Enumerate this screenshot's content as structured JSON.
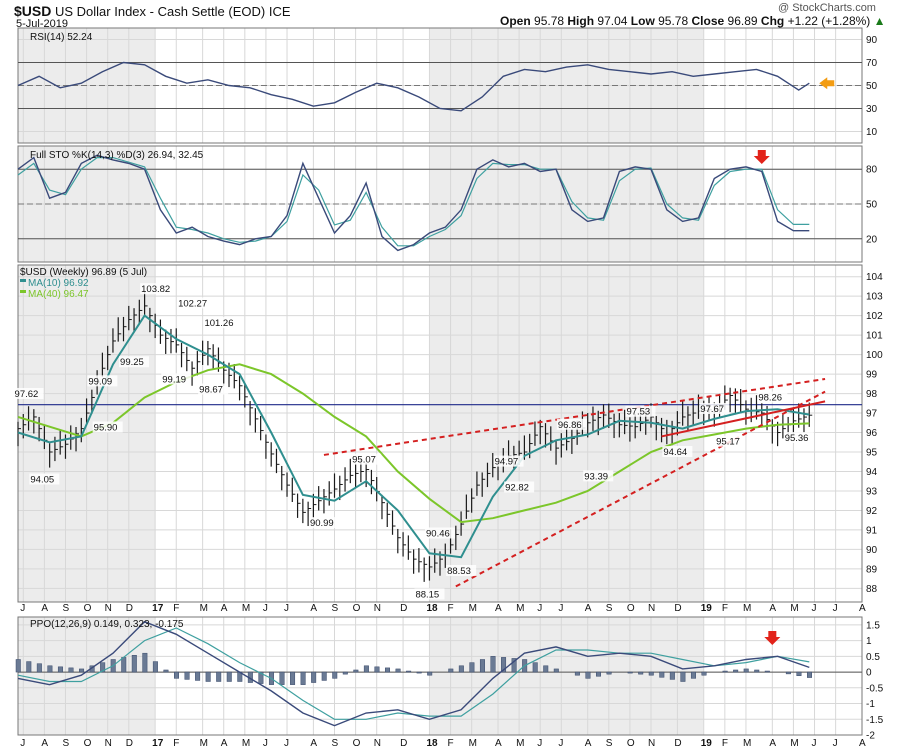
{
  "header": {
    "symbol": "$USD",
    "name": "US Dollar Index - Cash Settle (EOD)",
    "exchange": "ICE",
    "date": "5-Jul-2019",
    "watermark": "@ StockCharts.com",
    "quote": {
      "open_label": "Open",
      "open": "95.78",
      "high_label": "High",
      "high": "97.04",
      "low_label": "Low",
      "low": "95.78",
      "close_label": "Close",
      "close": "96.89",
      "chg_label": "Chg",
      "chg": "+1.22 (+1.28%)"
    }
  },
  "colors": {
    "price_bar": "#1a1a1a",
    "ma10": "#2f8f8f",
    "ma40": "#7cc62a",
    "indicator_line": "#3a4a7a",
    "signal_line": "#3fa0a0",
    "trendline": "#d42020",
    "horizontal_line": "#1f2a8a",
    "arrow_red": "#e2231a",
    "arrow_orange": "#f39c12",
    "panel_bg": "#ffffff",
    "shade_bg": "#ececec"
  },
  "chart_data": [
    {
      "type": "line",
      "panel": "rsi",
      "title": "RSI(14) 52.24",
      "yticks": [
        10,
        30,
        50,
        70,
        90
      ],
      "ylim": [
        0,
        100
      ],
      "x": [
        0,
        4,
        8,
        12,
        16,
        20,
        24,
        28,
        32,
        36,
        40,
        44,
        48,
        52,
        56,
        60,
        64,
        68,
        72,
        76,
        80,
        84,
        88,
        92,
        96,
        100,
        104,
        108,
        112,
        116,
        120,
        124,
        128,
        132,
        136,
        140,
        144,
        148,
        150
      ],
      "values": [
        50,
        58,
        48,
        52,
        62,
        70,
        68,
        58,
        52,
        55,
        50,
        48,
        42,
        38,
        32,
        35,
        44,
        52,
        48,
        40,
        30,
        28,
        40,
        58,
        64,
        62,
        66,
        68,
        64,
        62,
        60,
        62,
        58,
        60,
        62,
        64,
        58,
        46,
        52
      ],
      "signal": "orange left-pointing arrow at last value"
    },
    {
      "type": "line",
      "panel": "full_sto",
      "title": "Full STO %K(14,3) %D(3) 26.94, 32.45",
      "yticks": [
        20,
        50,
        80
      ],
      "ylim": [
        0,
        100
      ],
      "series": [
        {
          "name": "%K",
          "x": [
            0,
            3,
            6,
            9,
            12,
            15,
            18,
            21,
            24,
            27,
            30,
            33,
            36,
            39,
            42,
            45,
            48,
            51,
            54,
            57,
            60,
            63,
            66,
            69,
            72,
            75,
            78,
            81,
            84,
            87,
            90,
            93,
            96,
            99,
            102,
            105,
            108,
            111,
            114,
            117,
            120,
            123,
            126,
            129,
            132,
            135,
            138,
            141,
            144,
            147,
            150
          ],
          "values": [
            80,
            90,
            55,
            60,
            85,
            92,
            88,
            85,
            80,
            45,
            25,
            30,
            22,
            18,
            15,
            20,
            22,
            40,
            85,
            55,
            25,
            40,
            68,
            22,
            10,
            15,
            25,
            30,
            45,
            80,
            88,
            82,
            85,
            78,
            80,
            45,
            35,
            38,
            78,
            82,
            80,
            45,
            35,
            38,
            72,
            80,
            82,
            78,
            35,
            26.94,
            26.94
          ]
        },
        {
          "name": "%D",
          "x": [
            0,
            3,
            6,
            9,
            12,
            15,
            18,
            21,
            24,
            27,
            30,
            33,
            36,
            39,
            42,
            45,
            48,
            51,
            54,
            57,
            60,
            63,
            66,
            69,
            72,
            75,
            78,
            81,
            84,
            87,
            90,
            93,
            96,
            99,
            102,
            105,
            108,
            111,
            114,
            117,
            120,
            123,
            126,
            129,
            132,
            135,
            138,
            141,
            144,
            147,
            150
          ],
          "values": [
            75,
            85,
            62,
            58,
            80,
            90,
            90,
            86,
            82,
            55,
            30,
            28,
            25,
            20,
            17,
            18,
            22,
            35,
            75,
            62,
            32,
            36,
            60,
            30,
            14,
            14,
            22,
            28,
            40,
            72,
            85,
            84,
            84,
            80,
            80,
            52,
            38,
            36,
            70,
            80,
            81,
            50,
            38,
            36,
            66,
            78,
            80,
            80,
            45,
            32.45,
            32.45
          ]
        }
      ],
      "signal": "red down arrow above %K peak near June 2019"
    },
    {
      "type": "bar",
      "panel": "price",
      "title": "$USD (Weekly) 96.89 (5 Jul)",
      "legend": [
        "MA(10) 96.92",
        "MA(40) 96.47"
      ],
      "yticks": [
        88,
        89,
        90,
        91,
        92,
        93,
        94,
        95,
        96,
        97,
        98,
        99,
        100,
        101,
        102,
        103,
        104
      ],
      "ylim": [
        87.3,
        104.6
      ],
      "close_series": {
        "x": [
          0,
          3,
          6,
          9,
          12,
          15,
          18,
          21,
          24,
          27,
          30,
          33,
          36,
          39,
          42,
          45,
          48,
          51,
          54,
          57,
          60,
          63,
          66,
          69,
          72,
          75,
          78,
          81,
          84,
          87,
          90,
          93,
          96,
          99,
          102,
          105,
          108,
          111,
          114,
          117,
          120,
          123,
          126,
          129,
          132,
          135,
          138,
          141,
          144,
          147,
          150
        ],
        "values": [
          96.2,
          96.8,
          95.0,
          95.4,
          96.2,
          98.6,
          100.7,
          101.8,
          102.5,
          101.0,
          100.5,
          99.3,
          100.3,
          99.2,
          98.4,
          96.7,
          94.9,
          93.3,
          91.9,
          92.5,
          93.1,
          93.8,
          94.1,
          92.4,
          90.6,
          89.5,
          89.1,
          89.7,
          91.3,
          93.3,
          94.2,
          94.8,
          95.0,
          96.3,
          95.2,
          95.7,
          96.5,
          96.9,
          96.4,
          96.3,
          96.8,
          95.9,
          96.8,
          97.1,
          97.2,
          97.9,
          97.2,
          97.0,
          96.0,
          96.6,
          96.89
        ]
      },
      "ma10": {
        "x": [
          0,
          6,
          12,
          18,
          24,
          30,
          36,
          42,
          48,
          54,
          60,
          66,
          72,
          78,
          84,
          90,
          96,
          102,
          108,
          114,
          120,
          126,
          132,
          138,
          144,
          150
        ],
        "values": [
          96.0,
          95.5,
          95.8,
          99.5,
          102.0,
          100.8,
          100.0,
          99.0,
          96.0,
          92.8,
          92.5,
          93.5,
          92.0,
          89.8,
          89.6,
          92.7,
          94.8,
          95.6,
          95.9,
          96.6,
          96.5,
          96.2,
          96.7,
          97.1,
          97.2,
          96.92
        ]
      },
      "ma40": {
        "x": [
          0,
          6,
          12,
          18,
          24,
          30,
          36,
          42,
          48,
          54,
          60,
          66,
          72,
          78,
          84,
          90,
          96,
          102,
          108,
          114,
          120,
          126,
          132,
          138,
          144,
          150
        ],
        "values": [
          96.8,
          96.3,
          95.8,
          96.5,
          97.8,
          98.6,
          99.2,
          99.5,
          99.0,
          98.0,
          96.8,
          95.8,
          94.0,
          92.6,
          91.4,
          91.6,
          92.0,
          92.4,
          93.0,
          94.0,
          95.0,
          95.6,
          95.9,
          96.2,
          96.4,
          96.47
        ]
      },
      "price_labels": [
        {
          "text": "97.62",
          "x": 2,
          "y": 97.62
        },
        {
          "text": "94.05",
          "x": 5,
          "y": 94.05
        },
        {
          "text": "95.90",
          "x": 17,
          "y": 95.9
        },
        {
          "text": "99.09",
          "x": 16,
          "y": 99.09
        },
        {
          "text": "99.25",
          "x": 22,
          "y": 99.25
        },
        {
          "text": "103.82",
          "x": 26,
          "y": 103.82
        },
        {
          "text": "102.27",
          "x": 33,
          "y": 102.27
        },
        {
          "text": "99.19",
          "x": 30,
          "y": 99.19
        },
        {
          "text": "101.26",
          "x": 38,
          "y": 101.26
        },
        {
          "text": "98.67",
          "x": 37,
          "y": 98.67
        },
        {
          "text": "90.99",
          "x": 58,
          "y": 90.99
        },
        {
          "text": "95.07",
          "x": 66,
          "y": 95.07
        },
        {
          "text": "90.46",
          "x": 80,
          "y": 90.46
        },
        {
          "text": "88.15",
          "x": 78,
          "y": 88.15
        },
        {
          "text": "88.53",
          "x": 84,
          "y": 88.53
        },
        {
          "text": "94.97",
          "x": 93,
          "y": 94.97
        },
        {
          "text": "92.82",
          "x": 95,
          "y": 92.82
        },
        {
          "text": "96.86",
          "x": 105,
          "y": 96.86
        },
        {
          "text": "93.39",
          "x": 110,
          "y": 93.39
        },
        {
          "text": "97.53",
          "x": 118,
          "y": 97.53
        },
        {
          "text": "94.64",
          "x": 125,
          "y": 94.64
        },
        {
          "text": "97.67",
          "x": 132,
          "y": 97.67
        },
        {
          "text": "95.17",
          "x": 135,
          "y": 95.17
        },
        {
          "text": "98.26",
          "x": 143,
          "y": 98.26
        },
        {
          "text": "95.36",
          "x": 148,
          "y": 95.36
        }
      ],
      "horizontal_line": 97.43,
      "trendlines": [
        {
          "style": "dashed",
          "x1": 58,
          "y1": 94.85,
          "x2": 153,
          "y2": 98.75
        },
        {
          "style": "dashed",
          "x1": 83,
          "y1": 88.1,
          "x2": 153,
          "y2": 98.1
        },
        {
          "style": "solid",
          "x1": 122,
          "y1": 95.8,
          "x2": 153,
          "y2": 97.6
        }
      ]
    },
    {
      "type": "bar",
      "panel": "ppo",
      "title": "PPO(12,26,9) 0.149, 0.323, -0.175",
      "yticks": [
        -2.0,
        -1.5,
        -1.0,
        -0.5,
        0.0,
        0.5,
        1.0,
        1.5
      ],
      "ylim": [
        -2.0,
        1.75
      ],
      "series": [
        {
          "name": "PPO",
          "x": [
            0,
            6,
            12,
            18,
            24,
            30,
            36,
            42,
            48,
            54,
            60,
            66,
            72,
            78,
            84,
            90,
            96,
            102,
            108,
            114,
            120,
            126,
            132,
            138,
            144,
            150
          ],
          "values": [
            -0.2,
            -0.4,
            -0.1,
            0.6,
            1.6,
            1.2,
            0.6,
            0.0,
            -0.6,
            -1.3,
            -1.7,
            -1.3,
            -1.2,
            -1.5,
            -1.2,
            -0.2,
            0.6,
            0.8,
            0.5,
            0.6,
            0.5,
            0.1,
            0.2,
            0.4,
            0.5,
            0.149
          ]
        },
        {
          "name": "Signal",
          "x": [
            0,
            6,
            12,
            18,
            24,
            30,
            36,
            42,
            48,
            54,
            60,
            66,
            72,
            78,
            84,
            90,
            96,
            102,
            108,
            114,
            120,
            126,
            132,
            138,
            144,
            150
          ],
          "values": [
            -0.1,
            -0.3,
            -0.3,
            0.2,
            1.0,
            1.4,
            0.9,
            0.3,
            -0.2,
            -0.9,
            -1.5,
            -1.5,
            -1.3,
            -1.4,
            -1.4,
            -0.7,
            0.2,
            0.7,
            0.7,
            0.6,
            0.6,
            0.4,
            0.2,
            0.3,
            0.5,
            0.323
          ]
        },
        {
          "name": "Histogram",
          "x": [
            0,
            6,
            12,
            18,
            24,
            30,
            36,
            42,
            48,
            54,
            60,
            66,
            72,
            78,
            84,
            90,
            96,
            102,
            108,
            114,
            120,
            126,
            132,
            138,
            144,
            150
          ],
          "values": [
            0.4,
            0.2,
            0.1,
            0.4,
            0.6,
            -0.2,
            -0.3,
            -0.3,
            -0.4,
            -0.4,
            -0.2,
            0.2,
            0.1,
            -0.1,
            0.2,
            0.5,
            0.4,
            0.1,
            -0.2,
            0.0,
            -0.1,
            -0.3,
            0.0,
            0.1,
            0.0,
            -0.175
          ]
        }
      ],
      "signal": "red down arrow above PPO peak near June 2019"
    }
  ],
  "time_axis": {
    "labels": [
      "J",
      "A",
      "S",
      "O",
      "N",
      "D",
      "17",
      "F",
      "M",
      "A",
      "M",
      "J",
      "J",
      "A",
      "S",
      "O",
      "N",
      "D",
      "18",
      "F",
      "M",
      "A",
      "M",
      "J",
      "J",
      "A",
      "S",
      "O",
      "N",
      "D",
      "19",
      "F",
      "M",
      "A",
      "M",
      "J",
      "J",
      "A"
    ],
    "x": [
      1,
      5,
      9,
      13,
      17,
      21,
      26,
      30,
      35,
      39,
      43,
      47,
      51,
      56,
      60,
      64,
      68,
      73,
      78,
      82,
      86,
      91,
      95,
      99,
      103,
      108,
      112,
      116,
      120,
      125,
      130,
      134,
      138,
      143,
      147,
      151,
      155,
      160
    ],
    "bold": [
      "17",
      "18",
      "19"
    ]
  }
}
